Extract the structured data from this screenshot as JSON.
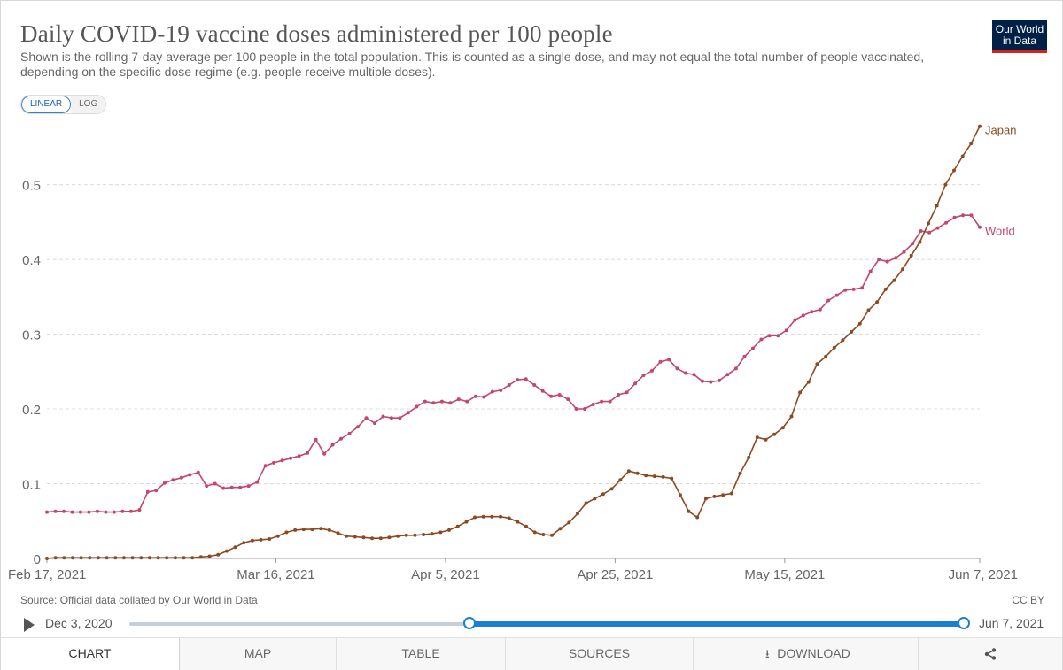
{
  "header": {
    "title": "Daily COVID-19 vaccine doses administered per 100 people",
    "subtitle": "Shown is the rolling 7-day average per 100 people in the total population. This is counted as a single dose, and may not equal the total number of people vaccinated, depending on the specific dose regime (e.g. people receive multiple doses).",
    "logo_line1": "Our World",
    "logo_line2": "in Data",
    "logo_color": "#002147",
    "logo_accent": "#ce261e"
  },
  "scale_toggle": {
    "linear_label": "LINEAR",
    "log_label": "LOG",
    "selected": "LINEAR"
  },
  "chart_data": {
    "type": "line",
    "title": "Daily COVID-19 vaccine doses administered per 100 people",
    "xlabel": "",
    "ylabel": "",
    "ylim": [
      0,
      0.58
    ],
    "y_ticks": [
      "0",
      "0.1",
      "0.2",
      "0.3",
      "0.4",
      "0.5"
    ],
    "x_tick_labels": [
      "Feb 17, 2021",
      "Mar 16, 2021",
      "Apr 5, 2021",
      "Apr 25, 2021",
      "May 15, 2021",
      "Jun 7, 2021"
    ],
    "x_start": "2021-02-17",
    "x_end": "2021-06-07",
    "grid": "horizontal dashed",
    "legend": "line-end labels",
    "series": [
      {
        "name": "World",
        "color": "#c2476b",
        "values": [
          0.062,
          0.063,
          0.063,
          0.062,
          0.062,
          0.062,
          0.063,
          0.062,
          0.062,
          0.063,
          0.063,
          0.065,
          0.089,
          0.091,
          0.101,
          0.105,
          0.108,
          0.112,
          0.115,
          0.097,
          0.1,
          0.094,
          0.095,
          0.095,
          0.097,
          0.102,
          0.124,
          0.128,
          0.131,
          0.134,
          0.137,
          0.141,
          0.159,
          0.14,
          0.152,
          0.16,
          0.167,
          0.176,
          0.188,
          0.181,
          0.19,
          0.188,
          0.188,
          0.195,
          0.203,
          0.21,
          0.208,
          0.21,
          0.208,
          0.213,
          0.21,
          0.217,
          0.216,
          0.223,
          0.225,
          0.232,
          0.239,
          0.24,
          0.232,
          0.224,
          0.217,
          0.219,
          0.213,
          0.2,
          0.2,
          0.206,
          0.21,
          0.21,
          0.219,
          0.222,
          0.234,
          0.245,
          0.251,
          0.263,
          0.266,
          0.254,
          0.248,
          0.246,
          0.237,
          0.236,
          0.238,
          0.246,
          0.254,
          0.27,
          0.281,
          0.293,
          0.298,
          0.298,
          0.305,
          0.319,
          0.325,
          0.33,
          0.333,
          0.345,
          0.352,
          0.359,
          0.36,
          0.362,
          0.384,
          0.4,
          0.397,
          0.402,
          0.41,
          0.421,
          0.438,
          0.436,
          0.442,
          0.449,
          0.456,
          0.459,
          0.459,
          0.443
        ]
      },
      {
        "name": "Japan",
        "color": "#8c4a22",
        "values": [
          0.0,
          0.001,
          0.001,
          0.001,
          0.001,
          0.001,
          0.001,
          0.001,
          0.001,
          0.001,
          0.001,
          0.001,
          0.001,
          0.001,
          0.001,
          0.001,
          0.001,
          0.001,
          0.002,
          0.003,
          0.005,
          0.01,
          0.015,
          0.021,
          0.024,
          0.025,
          0.026,
          0.03,
          0.035,
          0.038,
          0.039,
          0.039,
          0.04,
          0.038,
          0.034,
          0.03,
          0.029,
          0.028,
          0.027,
          0.027,
          0.028,
          0.03,
          0.031,
          0.031,
          0.032,
          0.033,
          0.035,
          0.038,
          0.043,
          0.049,
          0.055,
          0.056,
          0.056,
          0.056,
          0.054,
          0.049,
          0.043,
          0.035,
          0.032,
          0.031,
          0.04,
          0.048,
          0.06,
          0.074,
          0.08,
          0.086,
          0.093,
          0.105,
          0.117,
          0.114,
          0.111,
          0.11,
          0.109,
          0.107,
          0.085,
          0.063,
          0.055,
          0.08,
          0.083,
          0.085,
          0.087,
          0.114,
          0.135,
          0.162,
          0.159,
          0.166,
          0.175,
          0.19,
          0.222,
          0.236,
          0.26,
          0.27,
          0.282,
          0.292,
          0.303,
          0.314,
          0.332,
          0.343,
          0.36,
          0.372,
          0.387,
          0.405,
          0.423,
          0.448,
          0.472,
          0.5,
          0.519,
          0.538,
          0.555,
          0.578
        ]
      }
    ]
  },
  "footer": {
    "source": "Source: Official data collated by Our World in Data",
    "license": "CC BY"
  },
  "timeline": {
    "start_label": "Dec 3, 2020",
    "end_label": "Jun 7, 2021",
    "accent_color": "#1a7fd4"
  },
  "tabs": {
    "chart": "CHART",
    "map": "MAP",
    "table": "TABLE",
    "sources": "SOURCES",
    "download": "DOWNLOAD"
  }
}
